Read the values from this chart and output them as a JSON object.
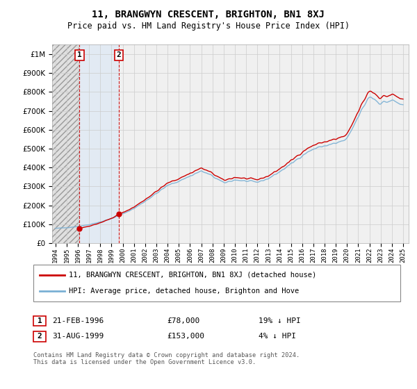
{
  "title": "11, BRANGWYN CRESCENT, BRIGHTON, BN1 8XJ",
  "subtitle": "Price paid vs. HM Land Registry's House Price Index (HPI)",
  "sale1_date": 1996.14,
  "sale1_price": 78000,
  "sale2_date": 1999.66,
  "sale2_price": 153000,
  "legend_line1": "11, BRANGWYN CRESCENT, BRIGHTON, BN1 8XJ (detached house)",
  "legend_line2": "HPI: Average price, detached house, Brighton and Hove",
  "row1_num": "1",
  "row1_date": "21-FEB-1996",
  "row1_price": "£78,000",
  "row1_pct": "19% ↓ HPI",
  "row2_num": "2",
  "row2_date": "31-AUG-1999",
  "row2_price": "£153,000",
  "row2_pct": "4% ↓ HPI",
  "footer": "Contains HM Land Registry data © Crown copyright and database right 2024.\nThis data is licensed under the Open Government Licence v3.0.",
  "red_color": "#cc0000",
  "blue_color": "#7ab0d4",
  "ylim": [
    0,
    1050000
  ],
  "xlim_start": 1993.7,
  "xlim_end": 2025.5,
  "background_color": "#ffffff",
  "plot_bg_color": "#f0f0f0"
}
